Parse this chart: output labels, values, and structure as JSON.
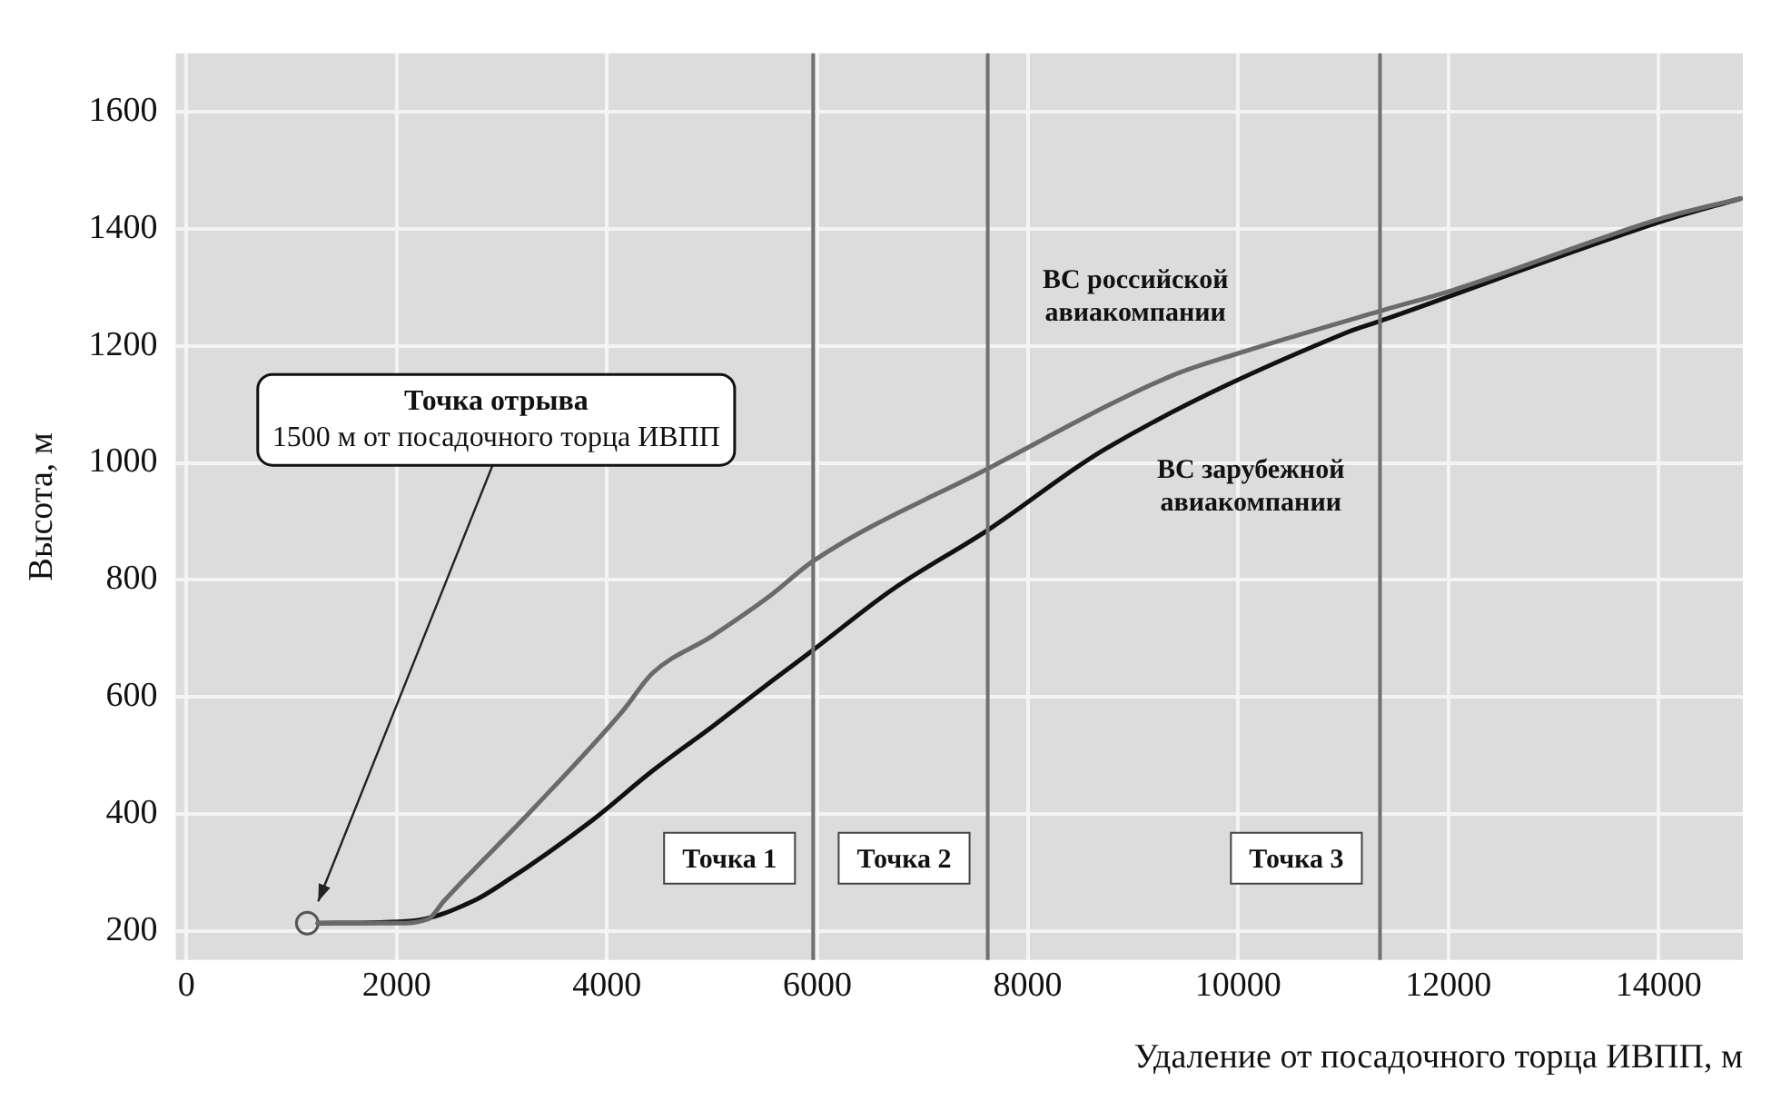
{
  "chart_data": {
    "type": "line",
    "xlabel": "Удаление от посадочного торца ИВПП, м",
    "ylabel": "Высота, м",
    "xlim": [
      -100,
      14800
    ],
    "xticks": [
      0,
      2000,
      4000,
      6000,
      8000,
      10000,
      12000,
      14000
    ],
    "ylim": [
      150,
      1700
    ],
    "yticks": [
      200,
      400,
      600,
      800,
      1000,
      1200,
      1400,
      1600
    ],
    "grid": true,
    "legend": false,
    "marker": "none",
    "line_style": "solid",
    "series": [
      {
        "name": "ВС российской авиакомпании",
        "color": "#6a6a6a",
        "x": [
          1250,
          2000,
          2300,
          2450,
          3300,
          4150,
          4430,
          5000,
          5560,
          5960,
          7620,
          9370,
          9980,
          11360,
          12040,
          14050,
          14780
        ],
        "values": [
          213,
          213,
          220,
          251,
          409,
          576,
          640,
          704,
          774,
          832,
          990,
          1149,
          1186,
          1260,
          1295,
          1419,
          1452
        ]
      },
      {
        "name": "ВС зарубежной авиакомпании",
        "color": "#111111",
        "x": [
          1250,
          2150,
          2730,
          3010,
          3860,
          4430,
          5000,
          5560,
          5960,
          6710,
          7620,
          8740,
          11050,
          11360,
          14050,
          14780
        ],
        "values": [
          213,
          217,
          251,
          281,
          389,
          473,
          549,
          626,
          680,
          783,
          885,
          1024,
          1224,
          1243,
          1414,
          1452
        ]
      },
      {
        "type": "scatter",
        "color": "#555555",
        "marker": "circle",
        "x": [
          1150
        ],
        "values": [
          213
        ]
      }
    ],
    "ref_lines": [
      {
        "axis": "x",
        "value": 5960,
        "label": "Точка 1",
        "color": "#707070"
      },
      {
        "axis": "x",
        "value": 7620,
        "label": "Точка 2",
        "color": "#707070"
      },
      {
        "axis": "x",
        "value": 11350,
        "label": "Точка 3",
        "color": "#707070"
      }
    ],
    "annotations": [
      "Точка отрыва\n1500 м от посадочного торца ИВПП"
    ]
  }
}
